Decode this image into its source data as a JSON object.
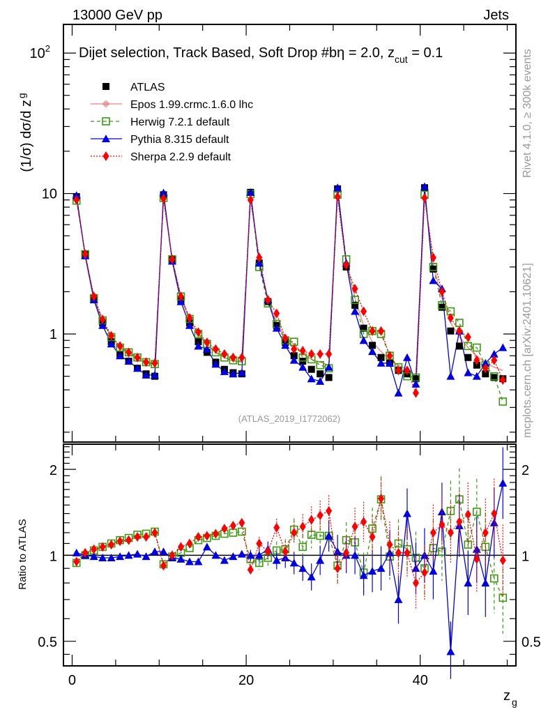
{
  "header": {
    "left": "13000 GeV pp",
    "right": "Jets"
  },
  "side_labels": {
    "rivet": "Rivet 4.1.0, ≥ 300k events",
    "mcplots": "mcplots.cern.ch [arXiv:2401.10621]"
  },
  "chart_data": [
    {
      "type": "scatter",
      "title": "Dijet selection, Track Based, Soft Drop #bη = 2.0, z_cut = 0.1",
      "title_main": "Dijet selection, Track Based, Soft Drop #bη = 2.0, z",
      "title_sub": "cut",
      "title_tail": " = 0.1",
      "analysis_label": "(ATLAS_2019_I1772062)",
      "ylabel": "(1/σ) dσ/d z",
      "ylabel_sub": "g",
      "yscale": "log",
      "ylim": [
        0.17,
        160
      ],
      "xlim": [
        -1,
        51
      ],
      "yticks": [
        {
          "v": 1,
          "label": "1"
        },
        {
          "v": 10,
          "label": "10"
        },
        {
          "v": 100,
          "label": "10",
          "sup": "2"
        }
      ],
      "legend_position": "top-left",
      "x": [
        0.5,
        1.5,
        2.5,
        3.5,
        4.5,
        5.5,
        6.5,
        7.5,
        8.5,
        9.5,
        10.5,
        11.5,
        12.5,
        13.5,
        14.5,
        15.5,
        16.5,
        17.5,
        18.5,
        19.5,
        20.5,
        21.5,
        22.5,
        23.5,
        24.5,
        25.5,
        26.5,
        27.5,
        28.5,
        29.5,
        30.5,
        31.5,
        32.5,
        33.5,
        34.5,
        35.5,
        36.5,
        37.5,
        38.5,
        39.5,
        40.5,
        41.5,
        42.5,
        43.5,
        44.5,
        45.5,
        46.5,
        47.5,
        48.5,
        49.5
      ],
      "series": [
        {
          "name": "ATLAS",
          "color": "#000000",
          "marker": "square-filled",
          "line": "none",
          "values": [
            9.5,
            3.7,
            1.8,
            1.2,
            0.88,
            0.72,
            0.64,
            0.57,
            0.52,
            0.5,
            9.8,
            3.4,
            1.75,
            1.2,
            0.88,
            0.74,
            0.63,
            0.56,
            0.53,
            0.52,
            10.2,
            3.2,
            1.7,
            1.15,
            0.87,
            0.7,
            0.64,
            0.56,
            0.52,
            0.49,
            10.8,
            3.0,
            1.6,
            1.1,
            0.83,
            0.68,
            0.62,
            0.55,
            0.52,
            0.48,
            11.0,
            2.9,
            1.55,
            1.05,
            0.82,
            0.68,
            0.6,
            0.52,
            0.49,
            0.48
          ]
        },
        {
          "name": "Epos 1.99.crmc.1.6.0 lhc",
          "color": "#f08080",
          "marker": "cross-open",
          "line": "solid",
          "values": [
            9.3,
            3.7,
            1.8,
            1.22,
            0.95,
            0.8,
            0.72,
            0.66,
            0.62,
            0.6,
            9.4,
            3.4,
            1.8,
            1.25,
            1.0,
            0.83,
            0.74,
            0.68,
            0.64,
            0.63,
            9.6,
            3.3,
            1.75,
            1.22,
            0.92,
            0.85,
            0.72,
            0.66,
            0.63,
            0.6,
            10.0,
            3.2,
            1.8,
            1.15,
            0.88,
            0.75,
            0.65,
            0.6,
            0.56,
            0.5,
            10.0,
            3.1,
            1.8,
            1.2,
            0.95,
            0.8,
            0.7,
            0.62,
            0.58,
            0.55
          ]
        },
        {
          "name": "Herwig 7.2.1 default",
          "color": "#3a9a10",
          "marker": "square-open",
          "line": "dashed",
          "values": [
            8.9,
            3.7,
            1.8,
            1.25,
            0.95,
            0.8,
            0.74,
            0.68,
            0.63,
            0.61,
            9.3,
            3.4,
            1.85,
            1.28,
            1.0,
            0.85,
            0.74,
            0.68,
            0.65,
            0.64,
            9.9,
            3.0,
            1.65,
            1.18,
            0.9,
            0.88,
            0.68,
            0.66,
            0.6,
            0.57,
            9.8,
            3.4,
            1.75,
            1.0,
            1.05,
            1.0,
            0.7,
            0.58,
            0.5,
            0.49,
            9.8,
            3.0,
            1.6,
            1.45,
            1.2,
            0.82,
            0.8,
            0.6,
            0.5,
            0.33
          ]
        },
        {
          "name": "Pythia 8.315 default",
          "color": "#0000e0",
          "marker": "triangle-filled",
          "line": "solid",
          "values": [
            9.7,
            3.6,
            1.75,
            1.15,
            0.85,
            0.7,
            0.64,
            0.57,
            0.51,
            0.51,
            10.1,
            3.3,
            1.7,
            1.15,
            0.82,
            0.78,
            0.61,
            0.54,
            0.52,
            0.53,
            10.2,
            3.2,
            1.75,
            1.1,
            0.83,
            0.65,
            0.58,
            0.48,
            0.46,
            0.58,
            11.0,
            3.2,
            1.45,
            0.9,
            0.75,
            0.62,
            0.62,
            0.38,
            0.68,
            0.44,
            11.2,
            2.4,
            2.1,
            0.5,
            1.05,
            0.53,
            0.5,
            0.62,
            0.72,
            0.8
          ]
        },
        {
          "name": "Sherpa 2.2.9 default",
          "color": "#ff0000",
          "marker": "diamond-filled",
          "line": "dotted",
          "values": [
            9.0,
            3.7,
            1.85,
            1.27,
            0.97,
            0.82,
            0.74,
            0.68,
            0.63,
            0.62,
            9.2,
            3.4,
            1.85,
            1.3,
            1.03,
            0.87,
            0.78,
            0.72,
            0.68,
            0.68,
            9.0,
            3.5,
            1.75,
            1.4,
            0.93,
            0.78,
            0.76,
            0.72,
            0.72,
            0.72,
            9.5,
            3.1,
            2.1,
            1.45,
            1.05,
            1.05,
            0.7,
            0.55,
            0.55,
            0.38,
            9.3,
            3.5,
            2.0,
            1.3,
            1.05,
            0.95,
            0.65,
            0.57,
            0.65,
            0.47
          ]
        }
      ]
    },
    {
      "type": "scatter",
      "ylabel": "Ratio to ATLAS",
      "xlabel": "z",
      "xlabel_sub": "g",
      "yscale": "log",
      "ylim": [
        0.41,
        2.45
      ],
      "xlim": [
        -1,
        51
      ],
      "xticks": [
        {
          "v": 0,
          "label": "0"
        },
        {
          "v": 20,
          "label": "20"
        },
        {
          "v": 40,
          "label": "40"
        }
      ],
      "yticks": [
        {
          "v": 0.5,
          "label": "0.5"
        },
        {
          "v": 1,
          "label": "1"
        },
        {
          "v": 2,
          "label": "2"
        }
      ],
      "reference_line": 1,
      "series": [
        {
          "name": "Herwig 7.2.1 default",
          "values": [
            0.94,
            1.0,
            1.04,
            1.07,
            1.1,
            1.13,
            1.15,
            1.18,
            1.19,
            1.21,
            0.93,
            0.99,
            1.02,
            1.06,
            1.13,
            1.15,
            1.17,
            1.19,
            1.2,
            1.21,
            0.97,
            0.94,
            0.98,
            1.04,
            1.05,
            1.23,
            1.07,
            1.18,
            1.17,
            1.17,
            0.92,
            1.13,
            1.11,
            0.87,
            1.24,
            1.57,
            0.99,
            1.1,
            1.05,
            0.98,
            0.9,
            1.06,
            1.03,
            1.43,
            1.57,
            1.09,
            1.42,
            1.07,
            0.83,
            0.71
          ]
        },
        {
          "name": "Pythia 8.315 default",
          "values": [
            1.02,
            1.0,
            0.99,
            0.98,
            0.98,
            0.99,
            1.0,
            1.01,
            0.99,
            1.03,
            1.03,
            0.98,
            0.97,
            0.95,
            0.95,
            1.07,
            1.0,
            0.96,
            0.99,
            1.01,
            1.0,
            1.0,
            1.05,
            0.96,
            0.98,
            0.94,
            0.9,
            0.84,
            0.96,
            1.17,
            1.03,
            1.0,
            1.0,
            0.85,
            0.88,
            0.9,
            1.02,
            0.7,
            1.4,
            0.9,
            1.0,
            0.88,
            1.42,
            0.46,
            1.27,
            0.8,
            1.05,
            0.8,
            1.3,
            1.79
          ]
        },
        {
          "name": "Sherpa 2.2.9 default",
          "values": [
            0.95,
            1.02,
            1.05,
            1.07,
            1.09,
            1.12,
            1.13,
            1.16,
            1.16,
            1.2,
            0.92,
            1.0,
            1.07,
            1.1,
            1.16,
            1.17,
            1.19,
            1.24,
            1.27,
            1.3,
            0.89,
            1.1,
            1.03,
            1.25,
            1.03,
            1.2,
            1.26,
            1.33,
            1.38,
            1.43,
            0.9,
            1.02,
            1.26,
            1.31,
            1.16,
            1.58,
            1.09,
            1.02,
            1.02,
            0.8,
            0.87,
            1.2,
            1.28,
            1.2,
            1.31,
            1.39,
            0.97,
            1.2,
            1.4,
            0.96
          ]
        }
      ]
    }
  ]
}
